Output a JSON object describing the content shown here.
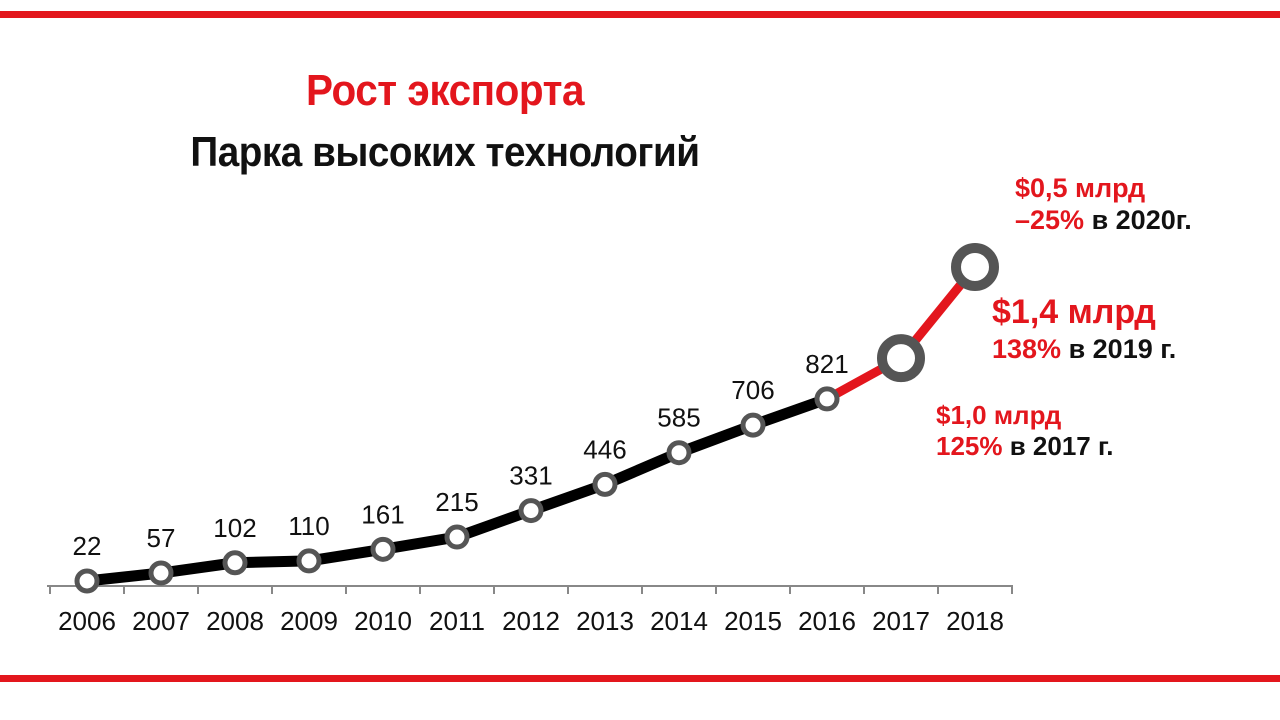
{
  "chart_data": {
    "type": "line",
    "title": "Рост экспорта",
    "subtitle": "Парка высоких технологий",
    "xlabel": "",
    "ylabel": "",
    "categories": [
      "2006",
      "2007",
      "2008",
      "2009",
      "2010",
      "2011",
      "2012",
      "2013",
      "2014",
      "2015",
      "2016",
      "2017",
      "2018"
    ],
    "series": [
      {
        "values": [
          22,
          57,
          102,
          110,
          161,
          215,
          331,
          446,
          585,
          706,
          821,
          1000,
          1400
        ],
        "labels": [
          "22",
          "57",
          "102",
          "110",
          "161",
          "215",
          "331",
          "446",
          "585",
          "706",
          "821",
          "",
          ""
        ],
        "color": "#000000",
        "highlight_color": "#e3161d",
        "highlight_from_index": 10
      }
    ],
    "ylim": [
      0,
      1500
    ],
    "grid": false,
    "annotations": [
      {
        "id": "2020",
        "line1_red": "$0,5 млрд",
        "line2_red": "–25%",
        "line2_black": " в 2020г."
      },
      {
        "id": "2019",
        "line1_red": "$1,4 млрд",
        "line2_red": "138%",
        "line2_black": " в 2019 г."
      },
      {
        "id": "2017",
        "line1_red": "$1,0 млрд",
        "line2_red": "125%",
        "line2_black": " в 2017 г."
      }
    ]
  },
  "colors": {
    "accent": "#e3161d",
    "line": "#000000",
    "marker": "#555555"
  }
}
